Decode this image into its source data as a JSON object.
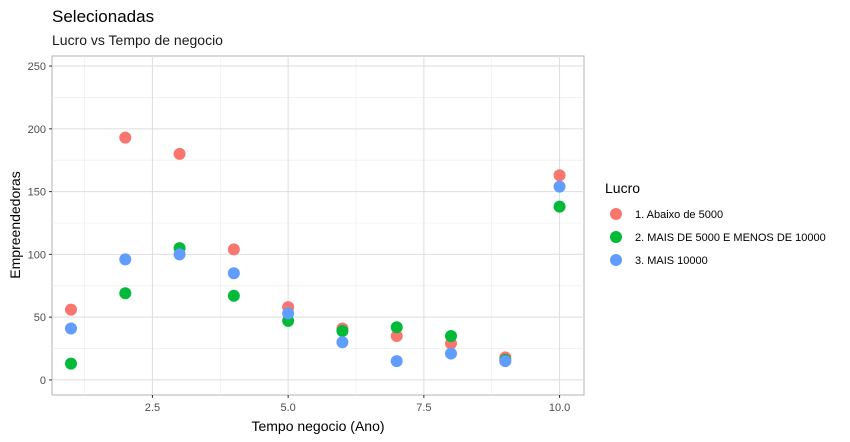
{
  "chart_data": {
    "type": "scatter",
    "title": "Selecionadas",
    "subtitle": "Lucro vs Tempo de negocio",
    "xlabel": "Tempo negocio (Ano)",
    "ylabel": "Empreendedoras",
    "xlim": [
      0.65,
      10.45
    ],
    "ylim": [
      -12,
      258
    ],
    "x_ticks": [
      2.5,
      5.0,
      7.5,
      10.0
    ],
    "x_tick_labels": [
      "2.5",
      "5.0",
      "7.5",
      "10.0"
    ],
    "y_ticks": [
      0,
      50,
      100,
      150,
      200,
      250
    ],
    "y_tick_labels": [
      "0",
      "50",
      "100",
      "150",
      "200",
      "250"
    ],
    "grid": true,
    "legend": {
      "title": "Lucro",
      "position": "right"
    },
    "series": [
      {
        "name": "1. Abaixo de 5000",
        "color": "#F8766D",
        "points": [
          {
            "x": 1,
            "y": 56
          },
          {
            "x": 2,
            "y": 193
          },
          {
            "x": 3,
            "y": 180
          },
          {
            "x": 4,
            "y": 104
          },
          {
            "x": 5,
            "y": 58
          },
          {
            "x": 6,
            "y": 41
          },
          {
            "x": 7,
            "y": 35
          },
          {
            "x": 8,
            "y": 29
          },
          {
            "x": 9,
            "y": 18
          },
          {
            "x": 10,
            "y": 163
          }
        ]
      },
      {
        "name": "2. MAIS DE 5000 E MENOS DE 10000",
        "color": "#00BA38",
        "points": [
          {
            "x": 1,
            "y": 13
          },
          {
            "x": 2,
            "y": 69
          },
          {
            "x": 3,
            "y": 105
          },
          {
            "x": 4,
            "y": 67
          },
          {
            "x": 5,
            "y": 47
          },
          {
            "x": 6,
            "y": 39
          },
          {
            "x": 7,
            "y": 42
          },
          {
            "x": 8,
            "y": 35
          },
          {
            "x": 9,
            "y": 16
          },
          {
            "x": 10,
            "y": 138
          }
        ]
      },
      {
        "name": "3. MAIS 10000",
        "color": "#619CFF",
        "points": [
          {
            "x": 1,
            "y": 41
          },
          {
            "x": 2,
            "y": 96
          },
          {
            "x": 3,
            "y": 100
          },
          {
            "x": 4,
            "y": 85
          },
          {
            "x": 5,
            "y": 53
          },
          {
            "x": 6,
            "y": 30
          },
          {
            "x": 7,
            "y": 15
          },
          {
            "x": 8,
            "y": 21
          },
          {
            "x": 9,
            "y": 15
          },
          {
            "x": 10,
            "y": 154
          }
        ]
      }
    ]
  }
}
